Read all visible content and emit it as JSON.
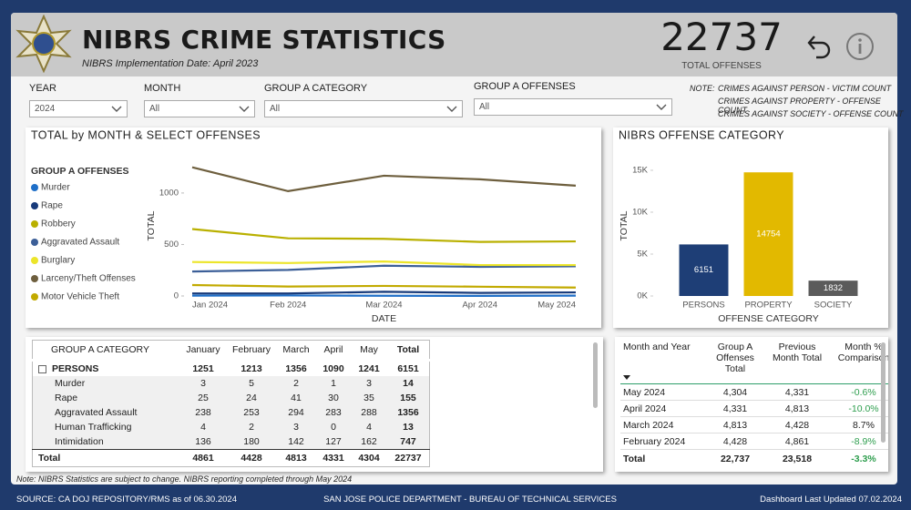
{
  "header": {
    "title": "NIBRS CRIME STATISTICS",
    "subtitle": "NIBRS Implementation Date: April 2023",
    "kpi_value": 22737,
    "kpi_label": "TOTAL OFFENSES"
  },
  "filters": [
    {
      "label": "YEAR",
      "value": "2024"
    },
    {
      "label": "MONTH",
      "value": "All"
    },
    {
      "label": "GROUP A CATEGORY",
      "value": "All"
    },
    {
      "label": "GROUP A OFFENSES",
      "value": "All"
    }
  ],
  "note": {
    "label": "NOTE:",
    "lines": [
      "CRIMES AGAINST PERSON - VICTIM COUNT",
      "CRIMES AGAINST PROPERTY - OFFENSE COUNT",
      "CRIMES AGAINST SOCIETY - OFFENSE COUNT"
    ]
  },
  "chart_data": [
    {
      "type": "line",
      "title": "TOTAL by MONTH & SELECT OFFENSES",
      "legend_title": "GROUP A OFFENSES",
      "x_label": "DATE",
      "y_label": "TOTAL",
      "categories": [
        "Jan 2024",
        "Feb 2024",
        "Mar 2024",
        "Apr 2024",
        "May 2024"
      ],
      "series": [
        {
          "name": "Murder",
          "color": "#1f6fc8",
          "values": [
            3,
            5,
            2,
            1,
            3
          ]
        },
        {
          "name": "Rape",
          "color": "#173a7a",
          "values": [
            25,
            24,
            41,
            30,
            35
          ]
        },
        {
          "name": "Robbery",
          "color": "#b9b000",
          "values": [
            650,
            560,
            555,
            525,
            530
          ]
        },
        {
          "name": "Aggravated Assault",
          "color": "#3c5f98",
          "values": [
            238,
            253,
            294,
            283,
            288
          ]
        },
        {
          "name": "Burglary",
          "color": "#ece52a",
          "values": [
            330,
            320,
            335,
            300,
            300
          ]
        },
        {
          "name": "Larceny/Theft Offenses",
          "color": "#6e5f3e",
          "values": [
            1250,
            1018,
            1168,
            1133,
            1071
          ]
        },
        {
          "name": "Motor Vehicle Theft",
          "color": "#c2aa00",
          "values": [
            106,
            92,
            98,
            90,
            82
          ]
        }
      ],
      "ylim": [
        0,
        1300
      ],
      "yticks": [
        0,
        500,
        1000
      ],
      "grid": false
    },
    {
      "type": "bar",
      "title": "NIBRS OFFENSE CATEGORY",
      "x_label": "OFFENSE CATEGORY",
      "y_label": "TOTAL",
      "categories": [
        "PERSONS",
        "PROPERTY",
        "SOCIETY"
      ],
      "values": [
        6151,
        14754,
        1832
      ],
      "colors": [
        "#1e3e76",
        "#e2b900",
        "#5b5b5b"
      ],
      "ylim": [
        0,
        16300
      ],
      "yticks": [
        {
          "value": 0,
          "label": "0K"
        },
        {
          "value": 5000,
          "label": "5K"
        },
        {
          "value": 10000,
          "label": "10K"
        },
        {
          "value": 15000,
          "label": "15K"
        }
      ],
      "grid": false
    }
  ],
  "tables": [
    {
      "columns": [
        "GROUP A CATEGORY",
        "January",
        "February",
        "March",
        "April",
        "May",
        "Total"
      ],
      "rows": [
        [
          "PERSONS",
          1251,
          1213,
          1356,
          1090,
          1241,
          6151
        ],
        [
          "Murder",
          3,
          5,
          2,
          1,
          3,
          14
        ],
        [
          "Rape",
          25,
          24,
          41,
          30,
          35,
          155
        ],
        [
          "Aggravated Assault",
          238,
          253,
          294,
          283,
          288,
          1356
        ],
        [
          "Human Trafficking",
          4,
          2,
          3,
          0,
          4,
          13
        ],
        [
          "Intimidation",
          136,
          180,
          142,
          127,
          162,
          747
        ]
      ],
      "total": [
        "Total",
        4861,
        4428,
        4813,
        4331,
        4304,
        22737
      ]
    },
    {
      "columns": [
        "Month and Year",
        "Group A Offenses Total",
        "Previous Month Total",
        "Month % Comparison"
      ],
      "rows": [
        [
          "May 2024",
          "4,304",
          "4,331",
          "-0.6%"
        ],
        [
          "April 2024",
          "4,331",
          "4,813",
          "-10.0%"
        ],
        [
          "March 2024",
          "4,813",
          "4,428",
          "8.7%"
        ],
        [
          "February 2024",
          "4,428",
          "4,861",
          "-8.9%"
        ]
      ],
      "total": [
        "Total",
        "22,737",
        "23,518",
        "-3.3%"
      ]
    }
  ],
  "footer": {
    "note": "Note: NIBRS Statistics are subject to change. NIBRS reporting completed through May 2024",
    "source": "SOURCE: CA DOJ REPOSITORY/RMS as of 06.30.2024",
    "department": "SAN JOSE POLICE DEPARTMENT - BUREAU OF TECHNICAL SERVICES",
    "updated": "Dashboard Last Updated 07.02.2024"
  }
}
